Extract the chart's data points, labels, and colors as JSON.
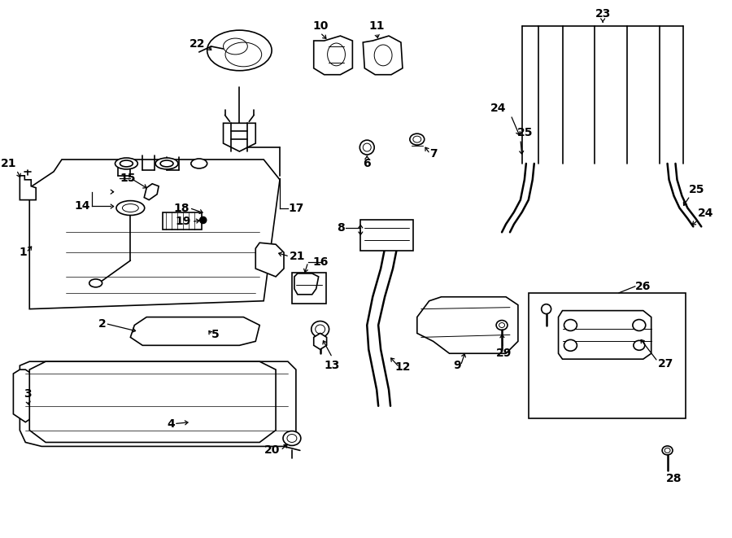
{
  "bg_color": "#ffffff",
  "line_color": "#000000",
  "fig_width": 9.0,
  "fig_height": 6.61,
  "dpi": 100,
  "lw_main": 1.2,
  "lw_thin": 0.7,
  "lw_thick": 1.8,
  "fontsize_label": 10,
  "fontsize_bold": 11
}
